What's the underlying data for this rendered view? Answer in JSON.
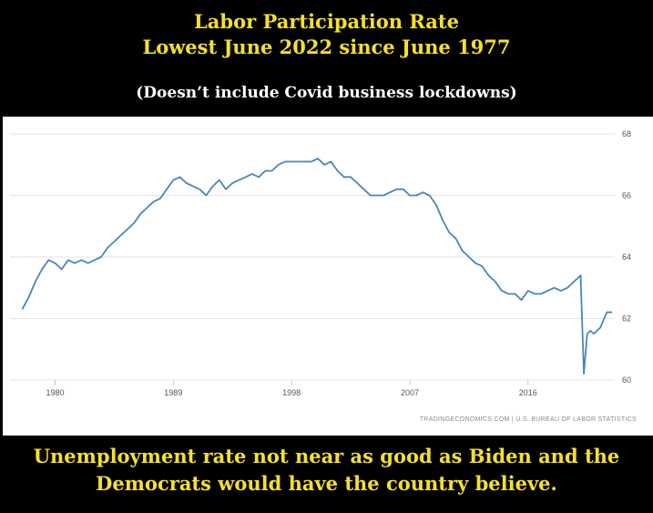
{
  "header": {
    "title_line1": "Labor Participation Rate",
    "title_line2": "Lowest June 2022 since June 1977",
    "subtitle": "(Doesn’t include Covid business lockdowns)"
  },
  "footer": {
    "line1": "Unemployment rate not near as good as Biden and the",
    "line2": "Democrats would have the country believe."
  },
  "colors": {
    "title_yellow": "#f5e02a",
    "line_blue": "#4a86b8",
    "grid": "#e6e6e6",
    "tick_text": "#555555"
  },
  "chart_data": {
    "type": "line",
    "title": "",
    "xlabel": "",
    "ylabel": "",
    "source": "TRADINGECONOMICS.COM | U.S. BUREAU OF LABOR STATISTICS",
    "xlim": [
      1977.4,
      2022.6
    ],
    "ylim": [
      60,
      68
    ],
    "x_ticks": [
      1980,
      1989,
      1998,
      2007,
      2016
    ],
    "x_tick_labels": [
      "1980",
      "1989",
      "1998",
      "2007",
      "2016"
    ],
    "y_ticks": [
      60,
      62,
      64,
      66,
      68
    ],
    "y_tick_labels": [
      "60",
      "62",
      "64",
      "66",
      "68"
    ],
    "y_axis_side": "right",
    "grid": "horizontal",
    "series": [
      {
        "x": [
          1977.5,
          1978.0,
          1978.5,
          1979.0,
          1979.5,
          1980.0,
          1980.5,
          1981.0,
          1981.5,
          1982.0,
          1982.5,
          1983.0,
          1983.5,
          1984.0,
          1984.5,
          1985.0,
          1985.5,
          1986.0,
          1986.5,
          1987.0,
          1987.5,
          1988.0,
          1988.5,
          1989.0,
          1989.5,
          1990.0,
          1990.5,
          1991.0,
          1991.5,
          1992.0,
          1992.5,
          1993.0,
          1993.5,
          1994.0,
          1994.5,
          1995.0,
          1995.5,
          1996.0,
          1996.5,
          1997.0,
          1997.5,
          1998.0,
          1998.5,
          1999.0,
          1999.5,
          2000.0,
          2000.5,
          2001.0,
          2001.5,
          2002.0,
          2002.5,
          2003.0,
          2003.5,
          2004.0,
          2004.5,
          2005.0,
          2005.5,
          2006.0,
          2006.5,
          2007.0,
          2007.5,
          2008.0,
          2008.5,
          2009.0,
          2009.5,
          2010.0,
          2010.5,
          2011.0,
          2011.5,
          2012.0,
          2012.5,
          2013.0,
          2013.5,
          2014.0,
          2014.5,
          2015.0,
          2015.5,
          2016.0,
          2016.5,
          2017.0,
          2017.5,
          2018.0,
          2018.5,
          2019.0,
          2019.5,
          2020.0,
          2020.25,
          2020.5,
          2020.75,
          2021.0,
          2021.5,
          2022.0,
          2022.4
        ],
        "values": [
          62.3,
          62.7,
          63.2,
          63.6,
          63.9,
          63.8,
          63.6,
          63.9,
          63.8,
          63.9,
          63.8,
          63.9,
          64.0,
          64.3,
          64.5,
          64.7,
          64.9,
          65.1,
          65.4,
          65.6,
          65.8,
          65.9,
          66.2,
          66.5,
          66.6,
          66.4,
          66.3,
          66.2,
          66.0,
          66.3,
          66.5,
          66.2,
          66.4,
          66.5,
          66.6,
          66.7,
          66.6,
          66.8,
          66.8,
          67.0,
          67.1,
          67.1,
          67.1,
          67.1,
          67.1,
          67.2,
          67.0,
          67.1,
          66.8,
          66.6,
          66.6,
          66.4,
          66.2,
          66.0,
          66.0,
          66.0,
          66.1,
          66.2,
          66.2,
          66.0,
          66.0,
          66.1,
          66.0,
          65.7,
          65.2,
          64.8,
          64.6,
          64.2,
          64.0,
          63.8,
          63.7,
          63.4,
          63.2,
          62.9,
          62.8,
          62.8,
          62.6,
          62.9,
          62.8,
          62.8,
          62.9,
          63.0,
          62.9,
          63.0,
          63.2,
          63.4,
          60.2,
          61.5,
          61.6,
          61.5,
          61.7,
          62.2,
          62.2
        ]
      }
    ]
  }
}
